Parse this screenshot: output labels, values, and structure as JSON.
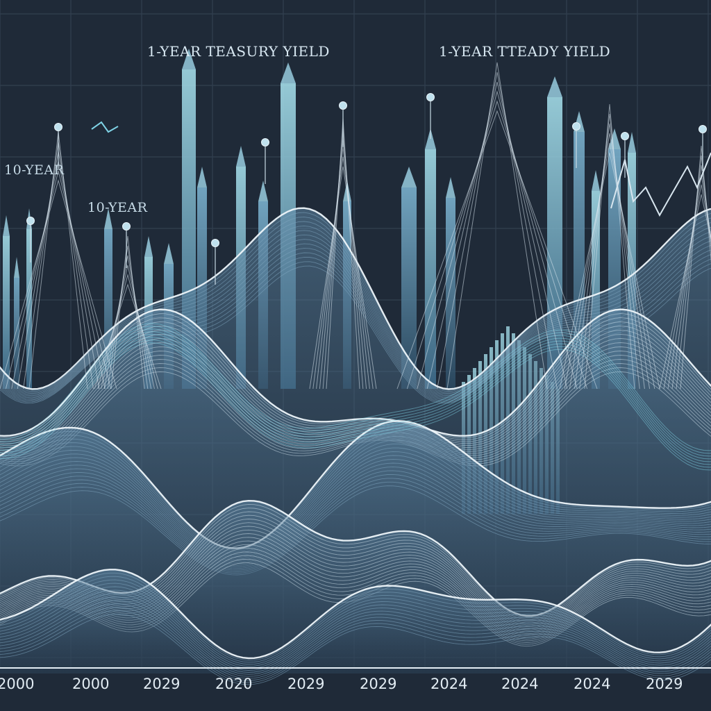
{
  "titles": {
    "top_left": "1-YEAR TEASURY YIELD",
    "top_right": "1-YEAR TTEADY YIELD"
  },
  "side_labels": [
    "10-YEAR",
    "10-YEAR"
  ],
  "x_axis_labels": [
    "2000",
    "2000",
    "2029",
    "2020",
    "2029",
    "2029",
    "2024",
    "2024",
    "2024",
    "2029"
  ],
  "colors": {
    "background": "#1f2a38",
    "grid": "#33404f",
    "wave_light": "#c9dbe6",
    "wave_mid": "#7fa6bf",
    "wave_dark": "#35536c",
    "cyan_accent": "#7fd3e6",
    "axis_text": "#e2ecf3"
  }
}
